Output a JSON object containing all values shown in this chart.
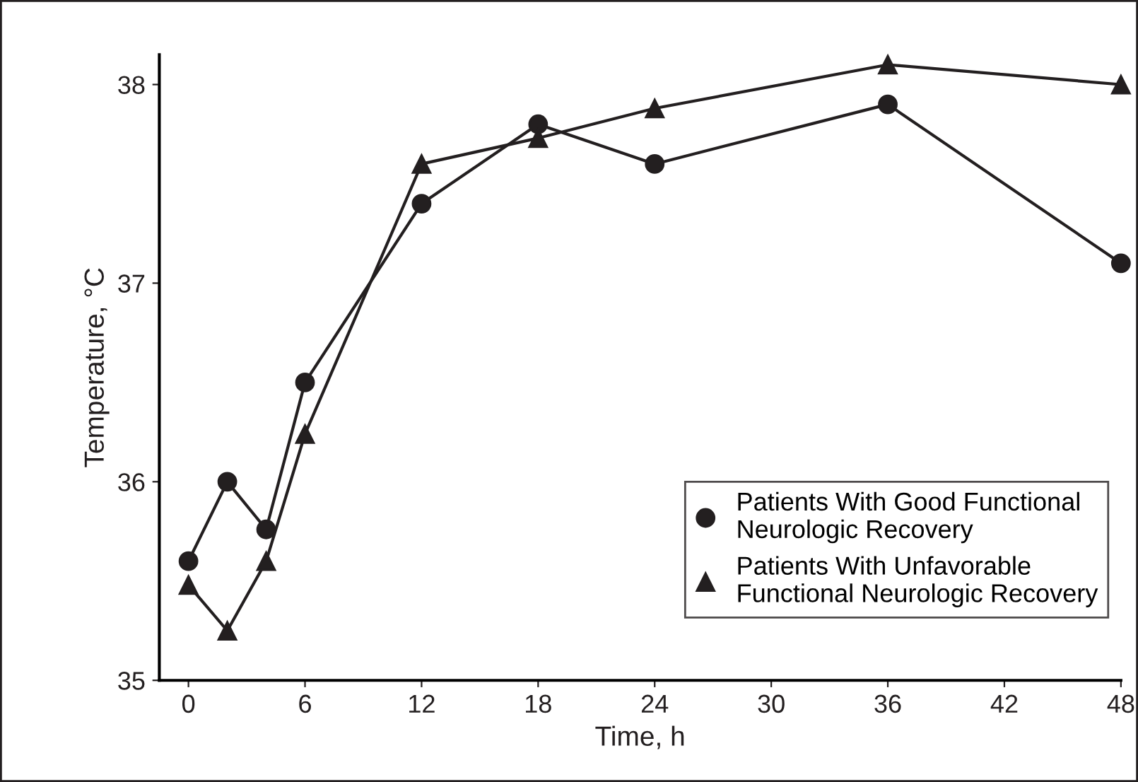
{
  "chart_data": {
    "type": "line",
    "xlabel": "Time, h",
    "ylabel": "Temperature, °C",
    "xlim": [
      -1.5,
      48
    ],
    "xticks": [
      0,
      6,
      12,
      18,
      24,
      30,
      36,
      42,
      48
    ],
    "ylim": [
      35,
      38.15
    ],
    "yticks": [
      35,
      36,
      37,
      38
    ],
    "grid": false,
    "legend": "bottom right",
    "line_style": "solid",
    "series": [
      {
        "name": "Patients With Good Functional\nNeurologic Recovery",
        "color": "#231f20",
        "marker": "circle",
        "x": [
          0,
          2,
          4,
          6,
          12,
          18,
          24,
          36,
          48
        ],
        "values": [
          35.6,
          36.0,
          35.76,
          36.5,
          37.4,
          37.8,
          37.6,
          37.9,
          37.1
        ]
      },
      {
        "name": "Patients With Unfavorable\nFunctional Neurologic Recovery",
        "color": "#231f20",
        "marker": "triangle",
        "x": [
          0,
          2,
          4,
          6,
          12,
          18,
          24,
          36,
          48
        ],
        "values": [
          35.48,
          35.25,
          35.6,
          36.24,
          37.6,
          37.73,
          37.88,
          38.1,
          38.0
        ]
      }
    ]
  }
}
